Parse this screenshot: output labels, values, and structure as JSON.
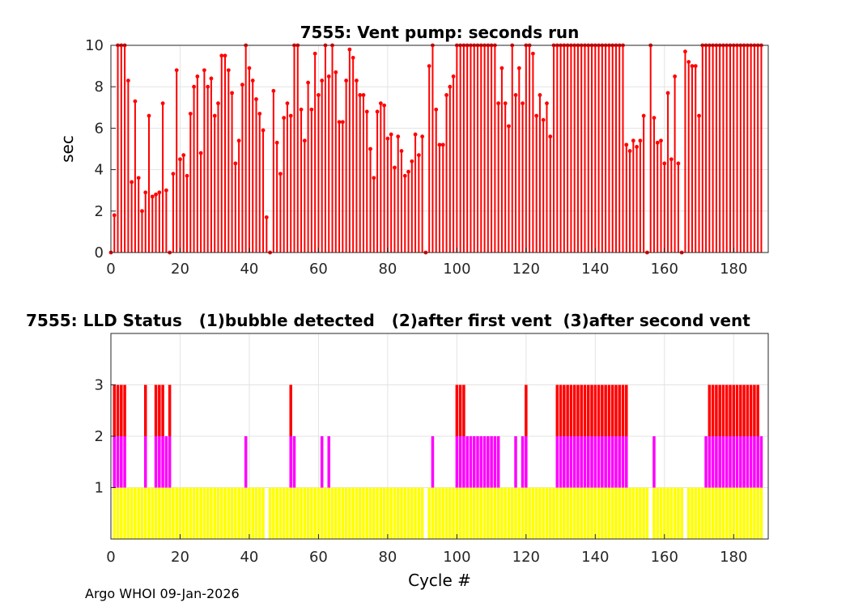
{
  "footer": "Argo WHOI 09-Jan-2026",
  "colors": {
    "stem": "#ff0000",
    "level1": "#ffff00",
    "level2": "#ff00ff",
    "level3": "#ff0000"
  },
  "chart_data": [
    {
      "type": "stem",
      "title": "7555: Vent pump: seconds run",
      "xlabel": "",
      "ylabel": "sec",
      "xlim": [
        0,
        190
      ],
      "ylim": [
        0,
        10
      ],
      "xticks": [
        "0",
        "20",
        "40",
        "60",
        "80",
        "100",
        "120",
        "140",
        "160",
        "180"
      ],
      "yticks": [
        "0",
        "2",
        "4",
        "6",
        "8",
        "10"
      ],
      "grid": true,
      "x_start": 0,
      "values": [
        0,
        1.8,
        10,
        10,
        10,
        8.3,
        3.4,
        7.3,
        3.6,
        2,
        2.9,
        6.6,
        2.7,
        2.8,
        2.9,
        7.2,
        3,
        0,
        3.8,
        8.8,
        4.5,
        4.7,
        3.7,
        6.7,
        8,
        8.5,
        4.8,
        8.8,
        8,
        8.4,
        6.6,
        7.2,
        9.5,
        9.5,
        8.8,
        7.7,
        4.3,
        5.4,
        8.1,
        10,
        8.9,
        8.3,
        7.4,
        6.7,
        5.9,
        1.7,
        0,
        7.8,
        5.3,
        3.8,
        6.5,
        7.2,
        6.6,
        10,
        10,
        6.9,
        5.4,
        8.2,
        6.9,
        9.6,
        7.6,
        8.3,
        10,
        8.5,
        10,
        8.7,
        6.3,
        6.3,
        8.3,
        9.8,
        9.4,
        8.3,
        7.6,
        7.6,
        6.8,
        5,
        3.6,
        6.8,
        7.2,
        7.1,
        5.5,
        5.7,
        4.1,
        5.6,
        4.9,
        3.7,
        3.9,
        4.4,
        5.7,
        4.7,
        5.6,
        0,
        9,
        10,
        6.9,
        5.2,
        5.2,
        7.6,
        8,
        8.5,
        10,
        10,
        10,
        10,
        10,
        10,
        10,
        10,
        10,
        10,
        10,
        10,
        7.2,
        8.9,
        7.2,
        6.1,
        10,
        7.6,
        8.9,
        7.2,
        10,
        10,
        9.6,
        6.6,
        7.6,
        6.4,
        7.2,
        5.6,
        10,
        10,
        10,
        10,
        10,
        10,
        10,
        10,
        10,
        10,
        10,
        10,
        10,
        10,
        10,
        10,
        10,
        10,
        10,
        10,
        10,
        5.2,
        4.9,
        5.4,
        5.1,
        5.4,
        6.6,
        0,
        10,
        6.5,
        5.3,
        5.4,
        4.3,
        7.7,
        4.5,
        8.5,
        4.3,
        0,
        9.7,
        9.2,
        9,
        9,
        6.6,
        10,
        10,
        10,
        10,
        10,
        10,
        10,
        10,
        10,
        10,
        10,
        10,
        10,
        10,
        10,
        10,
        10,
        10
      ]
    },
    {
      "type": "bar",
      "title": "7555: LLD Status   (1)bubble detected   (2)after first vent  (3)after second vent",
      "xlabel": "Cycle #",
      "ylabel": "",
      "xlim": [
        0,
        190
      ],
      "ylim": [
        0,
        4
      ],
      "xticks": [
        "0",
        "20",
        "40",
        "60",
        "80",
        "100",
        "120",
        "140",
        "160",
        "180"
      ],
      "yticks": [
        "1",
        "2",
        "3"
      ],
      "grid": true,
      "x_start": 1,
      "status": [
        3,
        3,
        3,
        3,
        1,
        1,
        1,
        1,
        1,
        3,
        1,
        1,
        3,
        3,
        3,
        2,
        3,
        1,
        1,
        1,
        1,
        1,
        1,
        1,
        1,
        1,
        1,
        1,
        1,
        1,
        1,
        1,
        1,
        1,
        1,
        1,
        1,
        1,
        2,
        1,
        1,
        1,
        1,
        1,
        0,
        1,
        1,
        1,
        1,
        1,
        1,
        3,
        2,
        1,
        1,
        1,
        1,
        1,
        1,
        1,
        2,
        1,
        2,
        1,
        1,
        1,
        1,
        1,
        1,
        1,
        1,
        1,
        1,
        1,
        1,
        1,
        1,
        1,
        1,
        1,
        1,
        1,
        1,
        1,
        1,
        1,
        1,
        1,
        1,
        1,
        0,
        1,
        2,
        1,
        1,
        1,
        1,
        1,
        1,
        3,
        3,
        3,
        2,
        2,
        2,
        2,
        2,
        2,
        2,
        2,
        2,
        2,
        1,
        1,
        1,
        1,
        2,
        1,
        2,
        3,
        1,
        1,
        1,
        1,
        1,
        1,
        1,
        1,
        3,
        3,
        3,
        3,
        3,
        3,
        3,
        3,
        3,
        3,
        3,
        3,
        3,
        3,
        3,
        3,
        3,
        3,
        3,
        3,
        3,
        1,
        1,
        1,
        1,
        1,
        1,
        0,
        2,
        1,
        1,
        1,
        1,
        1,
        1,
        1,
        1,
        0,
        1,
        1,
        1,
        1,
        1,
        2,
        3,
        3,
        3,
        3,
        3,
        3,
        3,
        3,
        3,
        3,
        3,
        3,
        3,
        3,
        3,
        2
      ]
    }
  ]
}
